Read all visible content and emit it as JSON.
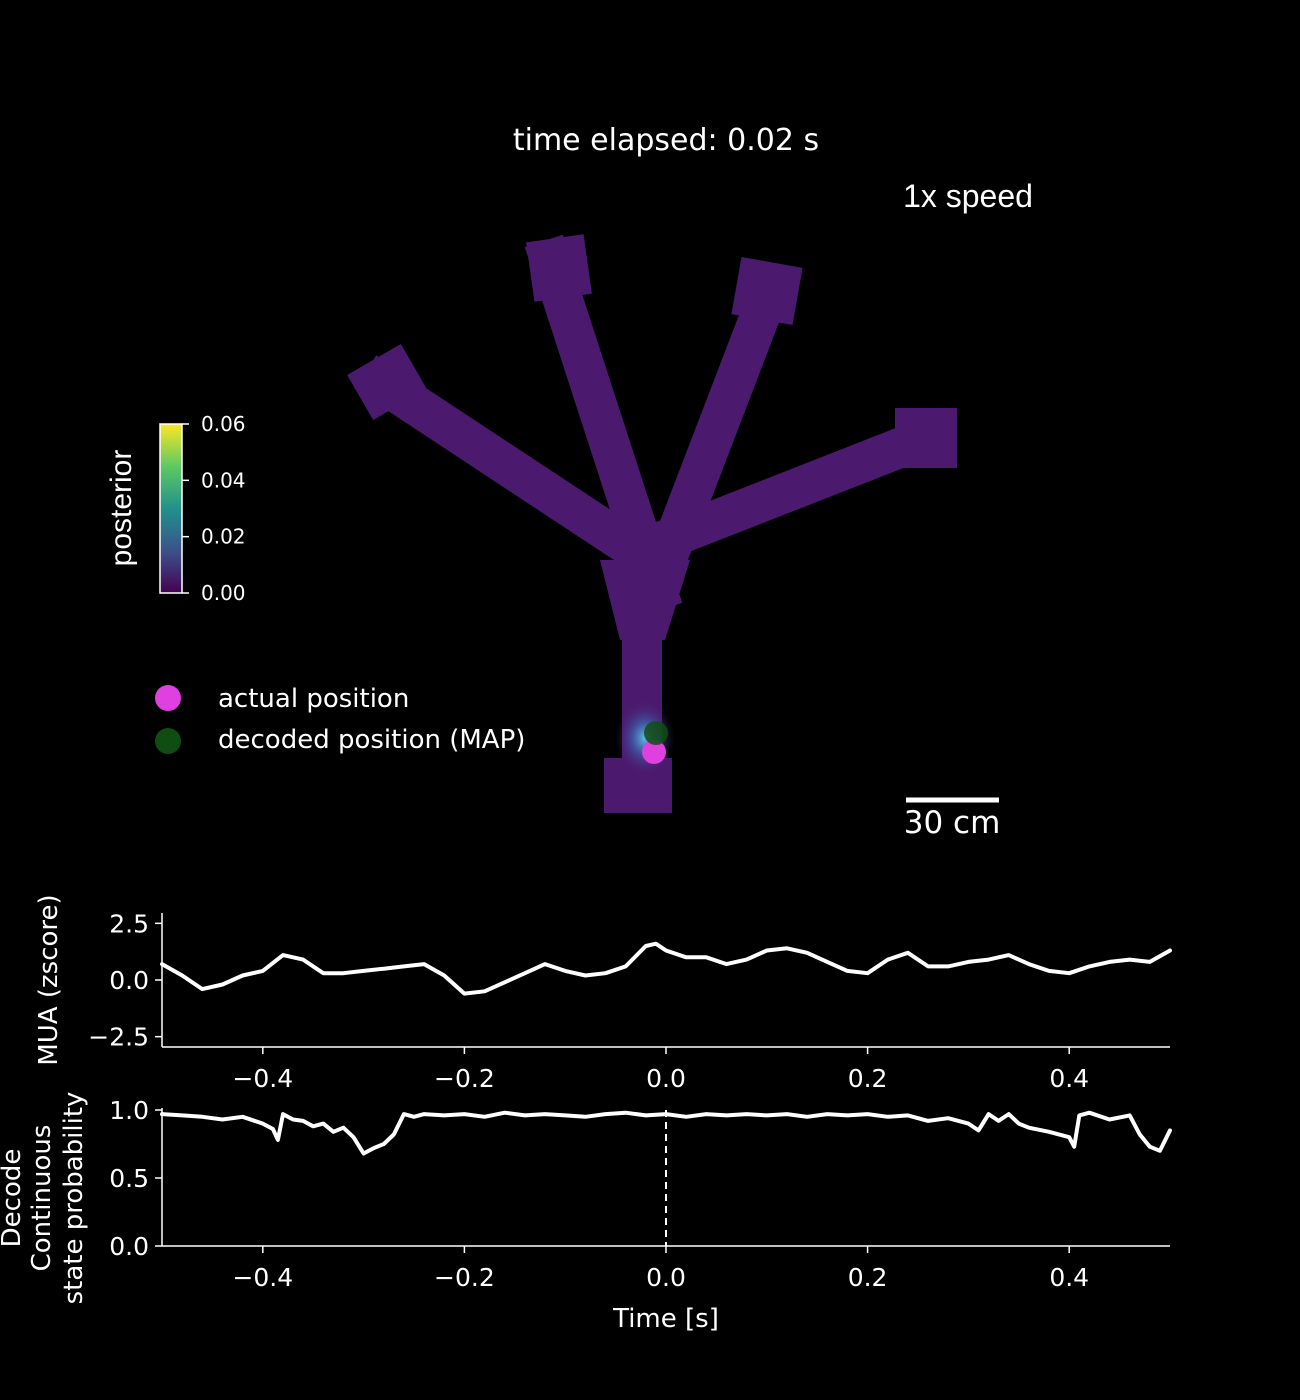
{
  "header": {
    "time_elapsed": "time elapsed: 0.02 s",
    "speed": "1x speed"
  },
  "colorbar": {
    "label": "posterior",
    "ticks": [
      "0.06",
      "0.04",
      "0.02",
      "0.00"
    ],
    "tick_values": [
      0.06,
      0.04,
      0.02,
      0.0
    ],
    "colormap": [
      "#440154",
      "#3b528b",
      "#21918c",
      "#5ec962",
      "#fde725"
    ]
  },
  "maze": {
    "track_color": "#4b1a6e",
    "actual_position_color": "#e040e0",
    "decoded_position_color": "#0f4d12",
    "scale_bar_label": "30 cm"
  },
  "legend": {
    "actual": "actual position",
    "decoded": "decoded position (MAP)"
  },
  "chart_data": [
    {
      "type": "line",
      "ylabel": "MUA (zscore)",
      "xlabel": "",
      "xlim": [
        -0.5,
        0.5
      ],
      "ylim": [
        -3.0,
        3.0
      ],
      "yticks": [
        "2.5",
        "0.0",
        "−2.5"
      ],
      "ytick_values": [
        2.5,
        0.0,
        -2.5
      ],
      "xticks": [
        "−0.4",
        "−0.2",
        "0.0",
        "0.2",
        "0.4"
      ],
      "xtick_values": [
        -0.4,
        -0.2,
        0.0,
        0.2,
        0.4
      ],
      "series": [
        {
          "color": "#ffffff",
          "x": [
            -0.5,
            -0.48,
            -0.46,
            -0.44,
            -0.42,
            -0.4,
            -0.38,
            -0.36,
            -0.34,
            -0.32,
            -0.3,
            -0.28,
            -0.26,
            -0.24,
            -0.22,
            -0.2,
            -0.18,
            -0.16,
            -0.14,
            -0.12,
            -0.1,
            -0.08,
            -0.06,
            -0.04,
            -0.02,
            -0.01,
            0.0,
            0.02,
            0.04,
            0.06,
            0.08,
            0.1,
            0.12,
            0.14,
            0.16,
            0.18,
            0.2,
            0.22,
            0.24,
            0.26,
            0.28,
            0.3,
            0.32,
            0.34,
            0.36,
            0.38,
            0.4,
            0.42,
            0.44,
            0.46,
            0.48,
            0.5
          ],
          "y": [
            0.7,
            0.2,
            -0.4,
            -0.2,
            0.2,
            0.4,
            1.1,
            0.9,
            0.3,
            0.3,
            0.4,
            0.5,
            0.6,
            0.7,
            0.2,
            -0.6,
            -0.5,
            -0.1,
            0.3,
            0.7,
            0.4,
            0.2,
            0.3,
            0.6,
            1.5,
            1.6,
            1.3,
            1.0,
            1.0,
            0.7,
            0.9,
            1.3,
            1.4,
            1.2,
            0.8,
            0.4,
            0.3,
            0.9,
            1.2,
            0.6,
            0.6,
            0.8,
            0.9,
            1.1,
            0.7,
            0.4,
            0.3,
            0.6,
            0.8,
            0.9,
            0.8,
            1.3
          ]
        }
      ]
    },
    {
      "type": "line",
      "ylabel": [
        "Decode",
        "Continuous",
        "state probability"
      ],
      "xlabel": "Time [s]",
      "xlim": [
        -0.5,
        0.5
      ],
      "ylim": [
        0.0,
        1.0
      ],
      "yticks": [
        "1.0",
        "0.5",
        "0.0"
      ],
      "ytick_values": [
        1.0,
        0.5,
        0.0
      ],
      "xticks": [
        "−0.4",
        "−0.2",
        "0.0",
        "0.2",
        "0.4"
      ],
      "xtick_values": [
        -0.4,
        -0.2,
        0.0,
        0.2,
        0.4
      ],
      "vline_x": 0.0,
      "series": [
        {
          "color": "#ffffff",
          "x": [
            -0.5,
            -0.48,
            -0.46,
            -0.44,
            -0.42,
            -0.4,
            -0.39,
            -0.385,
            -0.38,
            -0.37,
            -0.36,
            -0.35,
            -0.34,
            -0.33,
            -0.32,
            -0.31,
            -0.3,
            -0.29,
            -0.28,
            -0.27,
            -0.26,
            -0.25,
            -0.24,
            -0.22,
            -0.2,
            -0.18,
            -0.16,
            -0.14,
            -0.12,
            -0.1,
            -0.08,
            -0.06,
            -0.04,
            -0.02,
            0.0,
            0.02,
            0.04,
            0.06,
            0.08,
            0.1,
            0.12,
            0.14,
            0.16,
            0.18,
            0.2,
            0.22,
            0.24,
            0.26,
            0.28,
            0.3,
            0.31,
            0.32,
            0.33,
            0.34,
            0.35,
            0.36,
            0.38,
            0.4,
            0.405,
            0.41,
            0.42,
            0.44,
            0.46,
            0.47,
            0.48,
            0.49,
            0.5
          ],
          "y": [
            0.97,
            0.96,
            0.95,
            0.93,
            0.95,
            0.9,
            0.86,
            0.78,
            0.97,
            0.93,
            0.92,
            0.88,
            0.9,
            0.84,
            0.87,
            0.8,
            0.68,
            0.72,
            0.75,
            0.82,
            0.97,
            0.95,
            0.97,
            0.96,
            0.97,
            0.95,
            0.98,
            0.96,
            0.97,
            0.96,
            0.95,
            0.97,
            0.98,
            0.96,
            0.97,
            0.95,
            0.97,
            0.96,
            0.97,
            0.96,
            0.97,
            0.95,
            0.97,
            0.96,
            0.97,
            0.95,
            0.96,
            0.92,
            0.94,
            0.9,
            0.85,
            0.97,
            0.92,
            0.97,
            0.9,
            0.87,
            0.84,
            0.8,
            0.73,
            0.96,
            0.98,
            0.93,
            0.96,
            0.82,
            0.73,
            0.7,
            0.85
          ]
        }
      ]
    }
  ]
}
